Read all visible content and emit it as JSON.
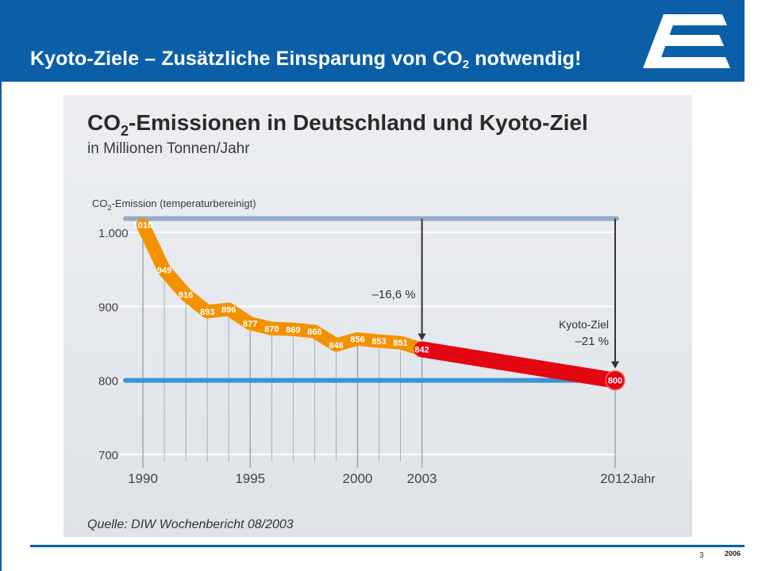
{
  "slide": {
    "title_main": "Kyoto-Ziele   –   Zusätzliche Einsparung von CO",
    "title_sub": "2",
    "title_end": " notwendig!",
    "page_number": "3",
    "year": "2006"
  },
  "chart_data": {
    "type": "line",
    "title_main": "CO",
    "title_sub": "2",
    "title_end": "-Emissionen in Deutschland und Kyoto-Ziel",
    "subtitle": "in Millionen Tonnen/Jahr",
    "ylabel_main": "CO",
    "ylabel_sub": "2",
    "ylabel_end": "-Emission (temperaturbereinigt)",
    "xlabel": "Jahr",
    "source": "Quelle: DIW Wochenbericht 08/2003",
    "xlim": [
      1990,
      2012
    ],
    "ylim": [
      700,
      1010
    ],
    "yticks": [
      {
        "value": 1000,
        "label": "1.000"
      },
      {
        "value": 900,
        "label": "900"
      },
      {
        "value": 800,
        "label": "800"
      },
      {
        "value": 700,
        "label": "700"
      }
    ],
    "xticks": [
      {
        "value": 1990,
        "label": "1990"
      },
      {
        "value": 1995,
        "label": "1995"
      },
      {
        "value": 2000,
        "label": "2000"
      },
      {
        "value": 2003,
        "label": "2003"
      },
      {
        "value": 2012,
        "label": "2012"
      }
    ],
    "series": [
      {
        "x": [
          1990,
          1991,
          1992,
          1993,
          1994,
          1995,
          1996,
          1997,
          1998,
          1999,
          2000,
          2001,
          2002,
          2003
        ],
        "values": [
          1010,
          949,
          916,
          893,
          896,
          877,
          870,
          869,
          866,
          848,
          856,
          853,
          851,
          842
        ],
        "labels": [
          "1010",
          "949",
          "916",
          "893",
          "896",
          "877",
          "870",
          "869",
          "866",
          "848",
          "856",
          "853",
          "851",
          "842"
        ],
        "color": "#f39200"
      },
      {
        "x": [
          2003,
          2012
        ],
        "values": [
          842,
          800
        ],
        "labels": [
          "",
          "800"
        ],
        "color": "#e30613"
      }
    ],
    "reference_lines": [
      {
        "value": 1010,
        "color": "#93acc5"
      },
      {
        "value": 800,
        "color": "#3a93d6"
      }
    ],
    "annotations": [
      {
        "x": 2003,
        "text": "–16,6 %"
      },
      {
        "x": 2012,
        "text_line1": "Kyoto-Ziel",
        "text_line2": "–21 %"
      }
    ]
  }
}
